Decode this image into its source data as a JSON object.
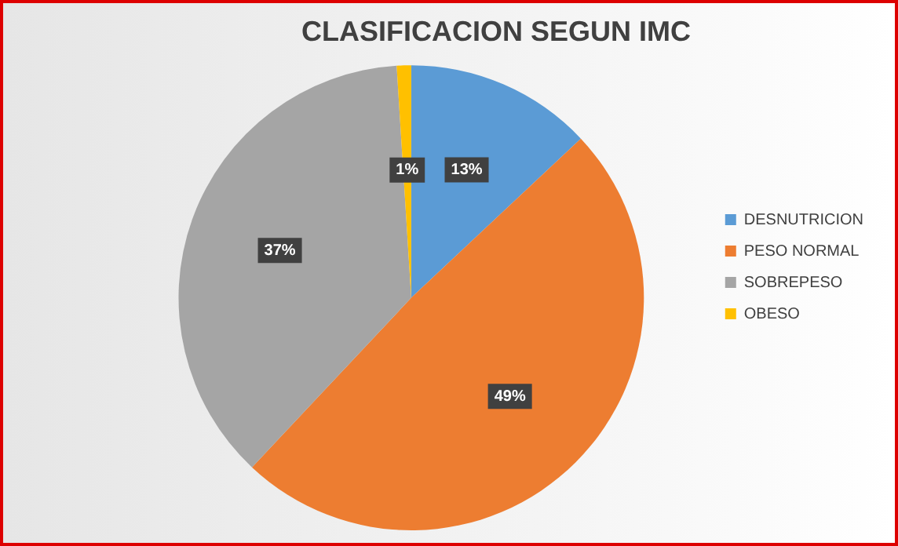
{
  "chart_data": {
    "type": "pie",
    "title": "CLASIFICACION SEGUN IMC",
    "categories": [
      "DESNUTRICION",
      "PESO NORMAL",
      "SOBREPESO",
      "OBESO"
    ],
    "values": [
      13,
      49,
      37,
      1
    ],
    "colors": [
      "#5b9bd5",
      "#ed7d31",
      "#a5a5a5",
      "#ffc000"
    ],
    "value_labels": [
      "13%",
      "49%",
      "37%",
      "1%"
    ],
    "legend": "right"
  }
}
